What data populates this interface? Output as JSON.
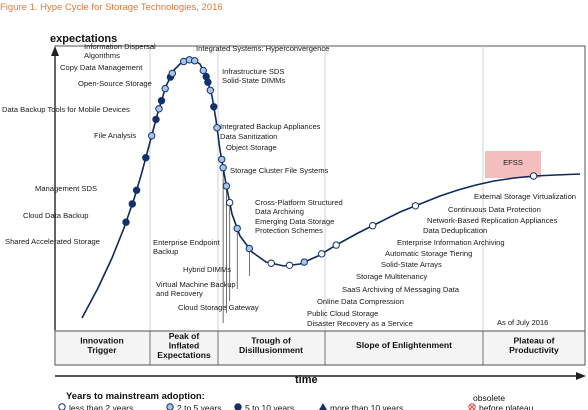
{
  "chart_data": {
    "type": "scatter",
    "title": "Figure 1. Hype Cycle for Storage Technologies, 2016",
    "ylabel": "expectations",
    "xlabel": "time",
    "as_of": "As of July 2016",
    "phases": [
      "Innovation Trigger",
      "Peak of Inflated Expectations",
      "Trough of Disillusionment",
      "Slope of Enlightenment",
      "Plateau of Productivity"
    ],
    "phase_lines": [
      [
        "Innovation",
        "Trigger"
      ],
      [
        "Peak of",
        "Inflated",
        "Expectations"
      ],
      [
        "Trough of",
        "Disillusionment"
      ],
      [
        "Slope of Enlightenment"
      ],
      [
        "Plateau of",
        "Productivity"
      ]
    ],
    "legend": {
      "title": "Years to mainstream adoption:",
      "items": [
        {
          "label": "less than 2 years",
          "marker": "open-circle"
        },
        {
          "label": "2 to 5 years",
          "marker": "light-circle"
        },
        {
          "label": "5 to 10 years",
          "marker": "dark-circle"
        },
        {
          "label": "more than 10 years",
          "marker": "triangle"
        },
        {
          "label": "obsolete before plateau",
          "marker": "x-circle"
        }
      ]
    },
    "highlight": "EFSS",
    "technologies": [
      {
        "name": "Shared Accelerated Storage",
        "t": 0.125,
        "adoption": "5 to 10 years"
      },
      {
        "name": "Cloud Data Backup",
        "t": 0.148,
        "adoption": "5 to 10 years"
      },
      {
        "name": "Management SDS",
        "t": 0.165,
        "adoption": "5 to 10 years"
      },
      {
        "name": "File Analysis",
        "t": 0.205,
        "adoption": "5 to 10 years"
      },
      {
        "name": "Data Backup Tools for Mobile Devices",
        "t": 0.232,
        "adoption": "2 to 5 years"
      },
      {
        "name": "Open-Source Storage",
        "t": 0.252,
        "adoption": "5 to 10 years"
      },
      {
        "name": "Copy Data Management",
        "t": 0.265,
        "adoption": "2 to 5 years"
      },
      {
        "name": "Information Dispersal Algorithms",
        "t": 0.275,
        "adoption": "5 to 10 years"
      },
      {
        "name": "Integrated Systems: Hyperconvergence",
        "t": 0.29,
        "adoption": "2 to 5 years"
      },
      {
        "name": "Infrastructure SDS",
        "t": 0.305,
        "adoption": "5 to 10 years"
      },
      {
        "name": "Solid-State DIMMs",
        "t": 0.31,
        "adoption": "2 to 5 years"
      },
      {
        "name": "Integrated Backup Appliances",
        "t": 0.33,
        "adoption": "2 to 5 years"
      },
      {
        "name": "Data Sanitization",
        "t": 0.337,
        "adoption": "2 to 5 years"
      },
      {
        "name": "Object Storage",
        "t": 0.344,
        "adoption": "2 to 5 years"
      },
      {
        "name": "Storage Cluster File Systems",
        "t": 0.36,
        "adoption": "2 to 5 years"
      },
      {
        "name": "Cross-Platform Structured Data Archiving",
        "t": 0.368,
        "adoption": "5 to 10 years"
      },
      {
        "name": "Emerging Data Storage Protection Schemes",
        "t": 0.375,
        "adoption": "5 to 10 years"
      },
      {
        "name": "Enterprise Endpoint Backup",
        "t": 0.385,
        "adoption": "2 to 5 years"
      },
      {
        "name": "Hybrid DIMMs",
        "t": 0.405,
        "adoption": "5 to 10 years"
      },
      {
        "name": "Virtual Machine Backup and Recovery",
        "t": 0.43,
        "adoption": "2 to 5 years"
      },
      {
        "name": "Cloud Storage Gateway",
        "t": 0.468,
        "adoption": "2 to 5 years"
      },
      {
        "name": "Disaster Recovery as a Service",
        "t": 0.478,
        "adoption": "2 to 5 years"
      },
      {
        "name": "Public Cloud Storage",
        "t": 0.5,
        "adoption": "2 to 5 years"
      },
      {
        "name": "Online Data Compression",
        "t": 0.52,
        "adoption": "less than 2 years"
      },
      {
        "name": "SaaS Archiving of Messaging Data",
        "t": 0.552,
        "adoption": "2 to 5 years"
      },
      {
        "name": "Storage Multitenancy",
        "t": 0.58,
        "adoption": "2 to 5 years"
      },
      {
        "name": "Solid-State Arrays",
        "t": 0.612,
        "adoption": "less than 2 years"
      },
      {
        "name": "Automatic Storage Tiering",
        "t": 0.634,
        "adoption": "less than 2 years"
      },
      {
        "name": "Enterprise Information Archiving",
        "t": 0.652,
        "adoption": "2 to 5 years"
      },
      {
        "name": "Data Deduplication",
        "t": 0.675,
        "adoption": "less than 2 years"
      },
      {
        "name": "Network-Based Replication Appliances",
        "t": 0.695,
        "adoption": "less than 2 years"
      },
      {
        "name": "Continuous Data Protection",
        "t": 0.744,
        "adoption": "less than 2 years"
      },
      {
        "name": "External Storage Virtualization",
        "t": 0.8,
        "adoption": "less than 2 years"
      },
      {
        "name": "EFSS",
        "t": 0.945,
        "adoption": "less than 2 years"
      }
    ]
  }
}
